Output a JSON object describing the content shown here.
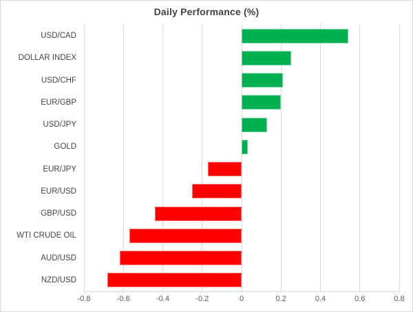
{
  "chart_data": {
    "type": "bar",
    "orientation": "horizontal",
    "title": "Daily Performance (%)",
    "categories": [
      "USD/CAD",
      "DOLLAR INDEX",
      "USD/CHF",
      "EUR/GBP",
      "USD/JPY",
      "GOLD",
      "EUR/JPY",
      "EUR/USD",
      "GBP/USD",
      "WTI CRUDE OIL",
      "AUD/USD",
      "NZD/USD"
    ],
    "values": [
      0.54,
      0.25,
      0.21,
      0.2,
      0.13,
      0.03,
      -0.17,
      -0.25,
      -0.44,
      -0.57,
      -0.62,
      -0.68
    ],
    "xlabel": "",
    "ylabel": "",
    "xlim": [
      -0.8,
      0.8
    ],
    "x_ticks": [
      -0.8,
      -0.6,
      -0.4,
      -0.2,
      0,
      0.2,
      0.4,
      0.6,
      0.8
    ],
    "x_tick_labels": [
      "-0.8",
      "-0.6",
      "-0.4",
      "-0.2",
      "0",
      "0.2",
      "0.4",
      "0.6",
      "0.8"
    ],
    "grid": "vertical-only",
    "legend": "none",
    "colors": {
      "positive": "#00B050",
      "negative": "#FF0000",
      "gridline": "#D9D9D9",
      "axis_line": "#D9D9D9",
      "title_text": "#404040",
      "tick_text": "#595959",
      "category_text": "#444444",
      "background": "#FFFFFF",
      "chart_border": "#D9D9D9"
    }
  }
}
